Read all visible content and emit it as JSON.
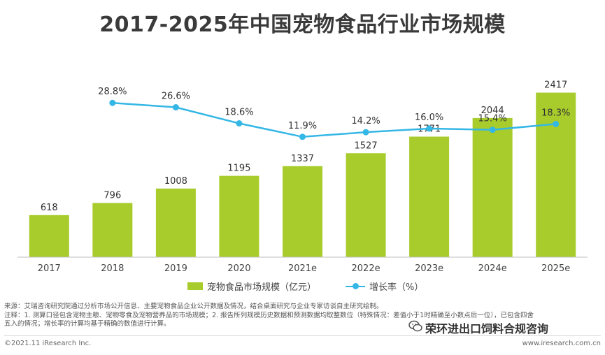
{
  "colors": {
    "bar": "#a7cc2b",
    "line": "#35b7e6",
    "title": "#3a3a3a",
    "axis": "#bfbfbf"
  },
  "title": "2017-2025年中国宠物食品行业市场规模",
  "chart_data": {
    "type": "bar",
    "title": "2017-2025年中国宠物食品行业市场规模",
    "categories": [
      "2017",
      "2018",
      "2019",
      "2020",
      "2021e",
      "2022e",
      "2023e",
      "2024e",
      "2025e"
    ],
    "series": [
      {
        "name": "宠物食品市场规模（亿元）",
        "type": "bar",
        "values": [
          618,
          796,
          1008,
          1195,
          1337,
          1527,
          1771,
          2044,
          2417
        ]
      },
      {
        "name": "增长率（%）",
        "type": "line",
        "values": [
          null,
          28.8,
          26.6,
          18.6,
          11.9,
          14.2,
          16.0,
          15.4,
          18.3
        ]
      }
    ],
    "value_labels": [
      "618",
      "796",
      "1008",
      "1195",
      "1337",
      "1527",
      "1771",
      "2044",
      "2417"
    ],
    "rate_labels": [
      "",
      "28.8%",
      "26.6%",
      "18.6%",
      "11.9%",
      "14.2%",
      "16.0%",
      "15.4%",
      "18.3%"
    ],
    "ylim_bar": [
      0,
      2700
    ],
    "ylim_line": [
      0,
      80
    ],
    "grid": false,
    "legend": "bottom"
  },
  "notes": {
    "source": "来源：艾瑞咨询研究院通过分析市场公开信息、主要宠物食品企业公开数据及情况，结合桌面研究与企业专家访谈自主研究绘制。",
    "note_line1": "注释：1. 测算口径包含宠物主粮、宠物零食及宠物营养品的市场规模；2. 报告所列规模历史数据和预测数据均取整数位（特殊情况：差值小于1时精确至小数点后一位），已包含四舍",
    "note_line2": "五入的情况；增长率的计算均基于精确的数值进行计算。"
  },
  "footer": {
    "copyright": "©2021.11 iResearch Inc.",
    "website": "www.iresearch.com.cn"
  },
  "watermark": {
    "icon": "wechat-icon",
    "text": "荣环进出口饲料合规咨询"
  }
}
